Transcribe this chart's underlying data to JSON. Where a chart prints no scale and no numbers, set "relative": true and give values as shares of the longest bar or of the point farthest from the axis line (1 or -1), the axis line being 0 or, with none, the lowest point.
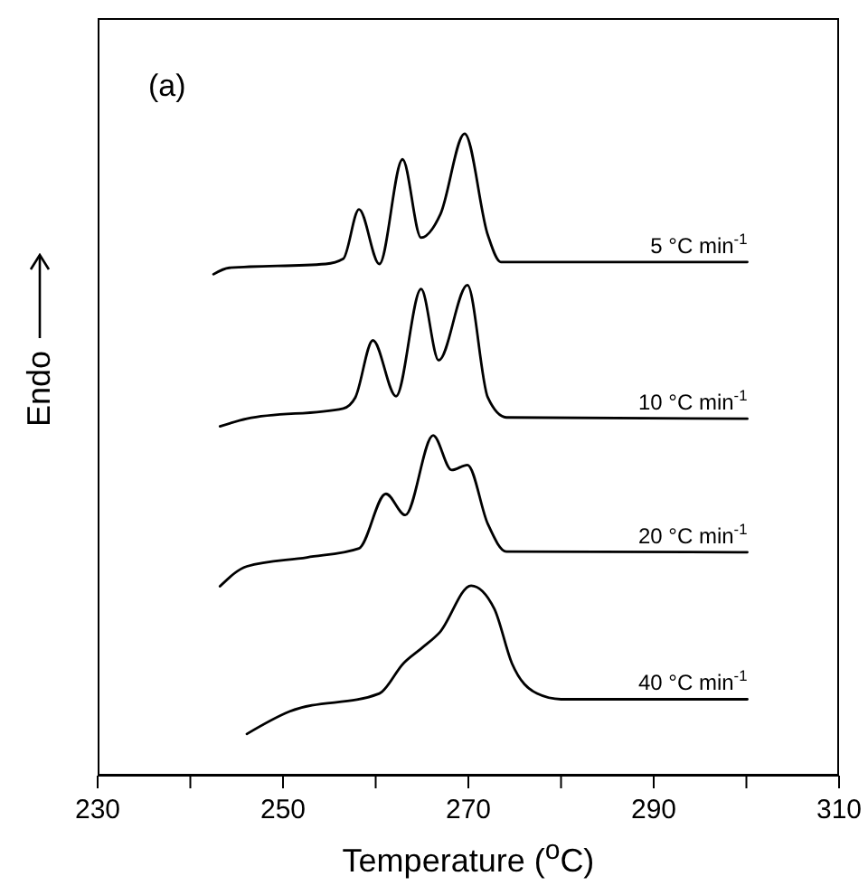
{
  "chart_data": {
    "type": "line",
    "relative": true,
    "xlabel": "Temperature ($^{o}$C)",
    "ylabel": "Endo",
    "annotations": [
      "(a)"
    ],
    "xlim": [
      230,
      310
    ],
    "xticks": [
      230,
      {
        "value": 240,
        "label": null
      },
      250,
      {
        "value": 260,
        "label": null
      },
      270,
      {
        "value": 280,
        "label": null
      },
      290,
      {
        "value": 300,
        "label": null
      },
      310
    ],
    "tick_labels": "x",
    "marker": "none",
    "line_style": "solid",
    "series": [
      {
        "name": "5 °C min$^{-1}$",
        "color": "#000000",
        "x": [
          242.5,
          244.2,
          254.6,
          256.5,
          258.2,
          260.4,
          262.9,
          264.9,
          267.0,
          269.6,
          272.1,
          273.5,
          300.1
        ],
        "values": [
          0.781,
          0.791,
          0.797,
          0.805,
          0.882,
          0.797,
          0.96,
          0.838,
          0.875,
          1.0,
          0.842,
          0.8,
          0.8
        ]
      },
      {
        "name": "10 °C min$^{-1}$",
        "color": "#000000",
        "x": [
          243.2,
          246.1,
          256.5,
          257.8,
          259.7,
          262.2,
          264.9,
          266.8,
          269.9,
          272.1,
          274.1,
          300.1
        ],
        "values": [
          0.544,
          0.556,
          0.572,
          0.589,
          0.678,
          0.591,
          0.758,
          0.647,
          0.764,
          0.589,
          0.558,
          0.556
        ]
      },
      {
        "name": "20 °C min$^{-1}$",
        "color": "#000000",
        "x": [
          243.2,
          246.1,
          252.6,
          258.2,
          261.1,
          263.2,
          266.2,
          268.2,
          269.9,
          272.1,
          274.1,
          300.1
        ],
        "values": [
          0.295,
          0.326,
          0.34,
          0.354,
          0.439,
          0.406,
          0.53,
          0.476,
          0.484,
          0.392,
          0.349,
          0.348
        ]
      },
      {
        "name": "40 °C min$^{-1}$",
        "color": "#000000",
        "x": [
          246.1,
          250.7,
          260.4,
          263.0,
          265.0,
          266.9,
          270.3,
          272.8,
          274.7,
          277.4,
          280.0,
          300.1
        ],
        "values": [
          0.065,
          0.1,
          0.128,
          0.175,
          0.199,
          0.223,
          0.296,
          0.26,
          0.175,
          0.128,
          0.119,
          0.119
        ]
      }
    ]
  }
}
